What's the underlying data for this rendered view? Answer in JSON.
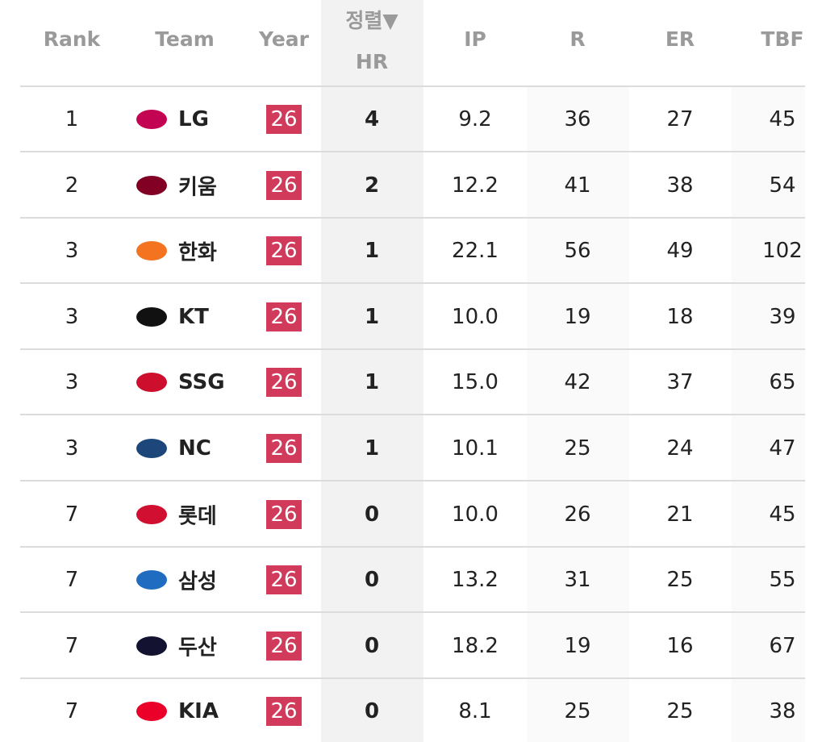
{
  "table": {
    "sort_label": "정렬▼",
    "headers": [
      "Rank",
      "Team",
      "Year",
      "HR",
      "IP",
      "R",
      "ER",
      "TBF"
    ],
    "rows": [
      [
        "1",
        "LG",
        "26",
        "4",
        "9.2",
        "36",
        "27",
        "45"
      ],
      [
        "2",
        "키움",
        "26",
        "2",
        "12.2",
        "41",
        "38",
        "54"
      ],
      [
        "3",
        "한화",
        "26",
        "1",
        "22.1",
        "56",
        "49",
        "102"
      ],
      [
        "3",
        "KT",
        "26",
        "1",
        "10.0",
        "19",
        "18",
        "39"
      ],
      [
        "3",
        "SSG",
        "26",
        "1",
        "15.0",
        "42",
        "37",
        "65"
      ],
      [
        "3",
        "NC",
        "26",
        "1",
        "10.1",
        "25",
        "24",
        "47"
      ],
      [
        "7",
        "롯데",
        "26",
        "0",
        "10.0",
        "26",
        "21",
        "45"
      ],
      [
        "7",
        "삼성",
        "26",
        "0",
        "13.2",
        "31",
        "25",
        "55"
      ],
      [
        "7",
        "두산",
        "26",
        "0",
        "18.2",
        "19",
        "16",
        "67"
      ],
      [
        "7",
        "KIA",
        "26",
        "0",
        "8.1",
        "25",
        "25",
        "38"
      ]
    ]
  }
}
